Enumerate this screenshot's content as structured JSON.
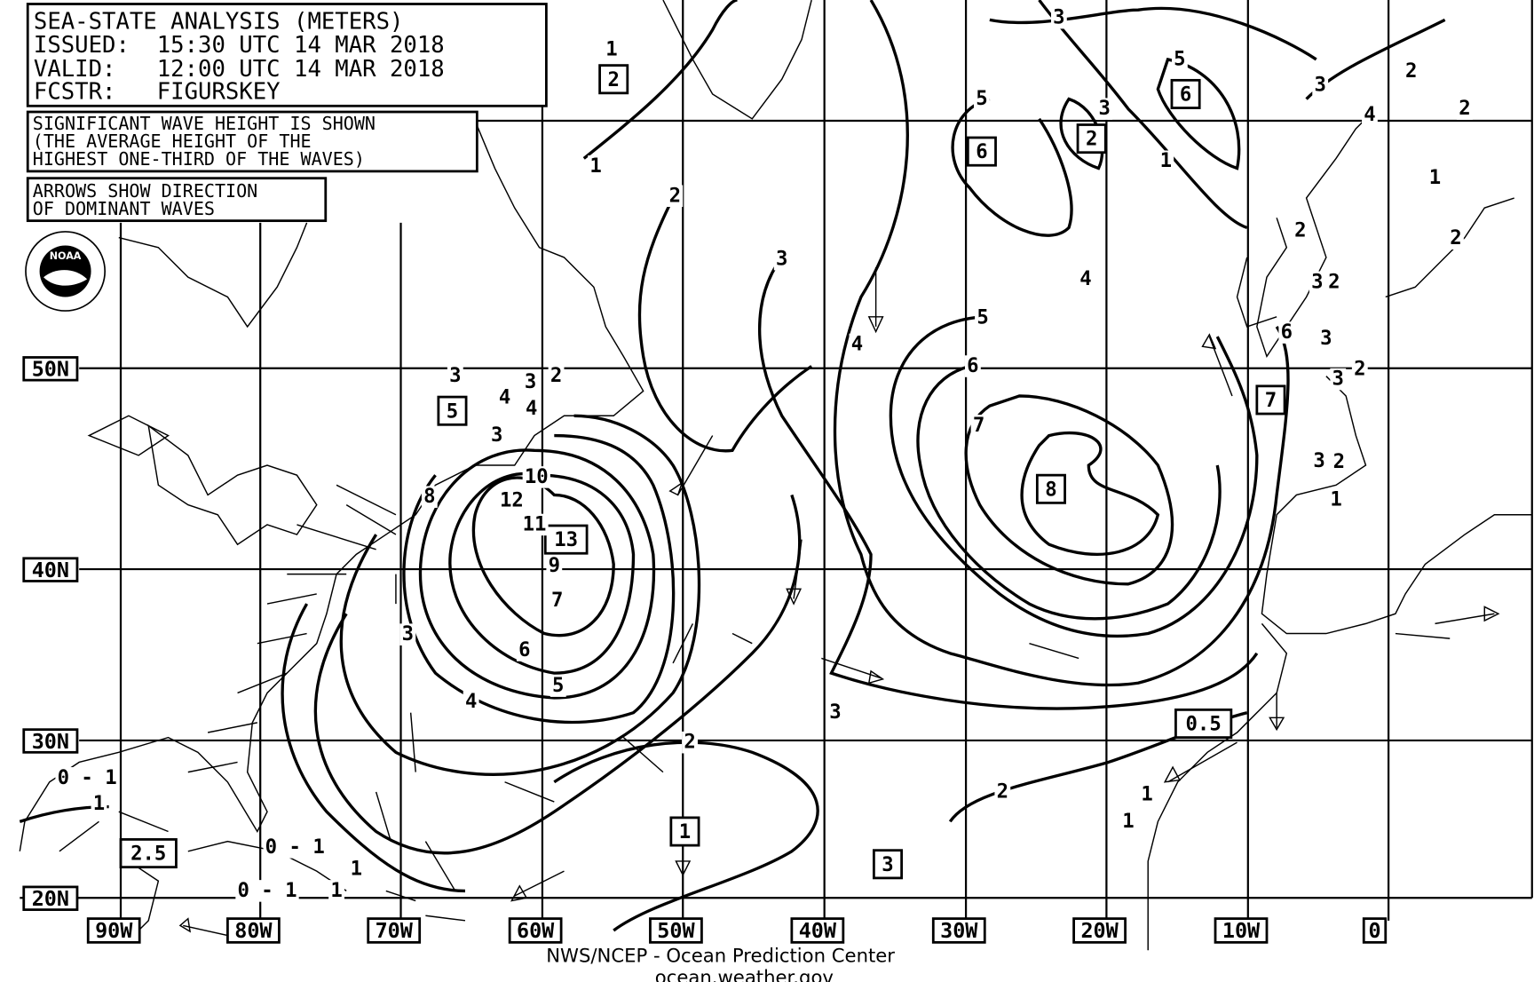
{
  "header": {
    "title": "SEA-STATE ANALYSIS (METERS)",
    "issued": "ISSUED:  15:30 UTC 14 MAR 2018",
    "valid": "VALID:   12:00 UTC 14 MAR 2018",
    "forecaster": "FCSTR:   FIGURSKEY"
  },
  "notes": {
    "wave_height": [
      "SIGNIFICANT WAVE HEIGHT IS SHOWN",
      "(THE AVERAGE HEIGHT OF THE",
      "HIGHEST ONE-THIRD OF THE WAVES)"
    ],
    "arrows": [
      "ARROWS SHOW DIRECTION",
      "OF DOMINANT WAVES"
    ]
  },
  "logo": {
    "icon": "noaa-logo",
    "text": "NOAA"
  },
  "latitude_labels": [
    "50N",
    "40N",
    "30N",
    "20N"
  ],
  "longitude_labels": [
    "90W",
    "80W",
    "70W",
    "60W",
    "50W",
    "40W",
    "30W",
    "20W",
    "10W",
    "0"
  ],
  "boxed_values": [
    "2",
    "6",
    "6",
    "2",
    "5",
    "13",
    "8",
    "7",
    "0.5",
    "1",
    "3",
    "2.5"
  ],
  "contour_labels": [
    "1",
    "1",
    "2",
    "3",
    "3",
    "4",
    "5",
    "5",
    "3",
    "2",
    "4",
    "2",
    "3",
    "2",
    "1",
    "4",
    "5",
    "6",
    "7",
    "3",
    "4",
    "3",
    "2",
    "4",
    "3",
    "8",
    "10",
    "12",
    "11",
    "9",
    "7",
    "6",
    "5",
    "4",
    "3",
    "3",
    "2",
    "2",
    "1",
    "0 - 1",
    "1",
    "0 - 1",
    "1",
    "0 - 1",
    "1",
    "6",
    "3",
    "3",
    "2",
    "3",
    "2",
    "3",
    "2",
    "1",
    "1",
    "2",
    "1"
  ],
  "footer": {
    "agency": "NWS/NCEP - Ocean Prediction Center",
    "url": "ocean.weather.gov"
  }
}
